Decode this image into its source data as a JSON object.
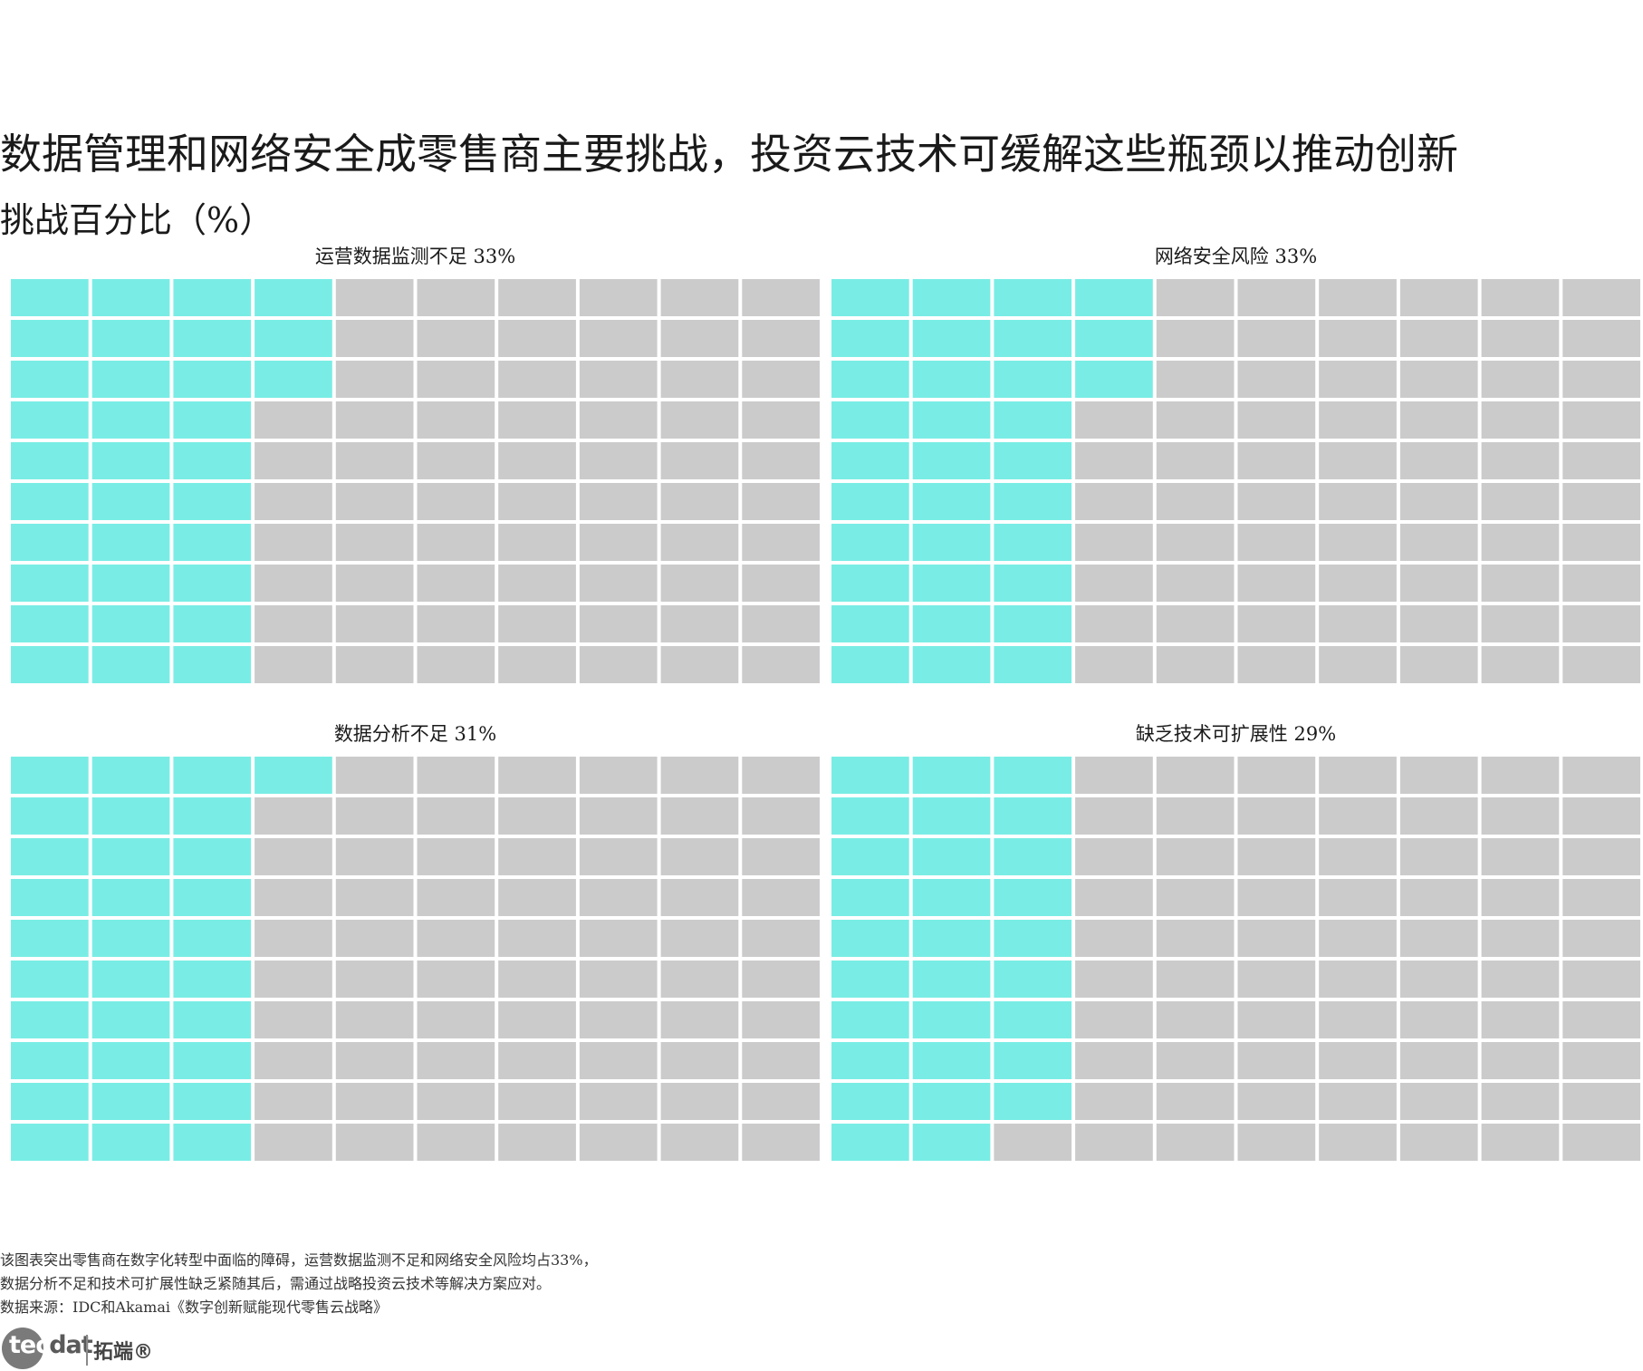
{
  "title": "数据管理和网络安全成零售商主要挑战，投资云技术可缓解这些瓶颈以推动创新",
  "subtitle": "挑战百分比（%）",
  "colors": {
    "filled": "#79ede5",
    "empty": "#cbcbcb"
  },
  "chart_data": [
    {
      "type": "waffle",
      "grid": {
        "rows": 10,
        "cols": 10
      },
      "fill_order": "column-major, top-to-bottom",
      "label": "运营数据监测不足 33%",
      "value": 33
    },
    {
      "type": "waffle",
      "grid": {
        "rows": 10,
        "cols": 10
      },
      "fill_order": "column-major, top-to-bottom",
      "label": "网络安全风险 33%",
      "value": 33
    },
    {
      "type": "waffle",
      "grid": {
        "rows": 10,
        "cols": 10
      },
      "fill_order": "column-major, top-to-bottom",
      "label": "数据分析不足 31%",
      "value": 31
    },
    {
      "type": "waffle",
      "grid": {
        "rows": 10,
        "cols": 10
      },
      "fill_order": "column-major, top-to-bottom",
      "label": "缺乏技术可扩展性 29%",
      "value": 29
    }
  ],
  "footer": {
    "line1": "该图表突出零售商在数字化转型中面临的障碍，运营数据监测不足和网络安全风险均占33%，",
    "line2": "数据分析不足和技术可扩展性缺乏紧随其后，需通过战略投资云技术等解决方案应对。",
    "source": "数据来源：IDC和Akamai《数字创新赋能现代零售云战略》"
  },
  "logo": {
    "brand_first": "tec",
    "brand_rest": "dat",
    "brand_cn": "拓端®"
  }
}
